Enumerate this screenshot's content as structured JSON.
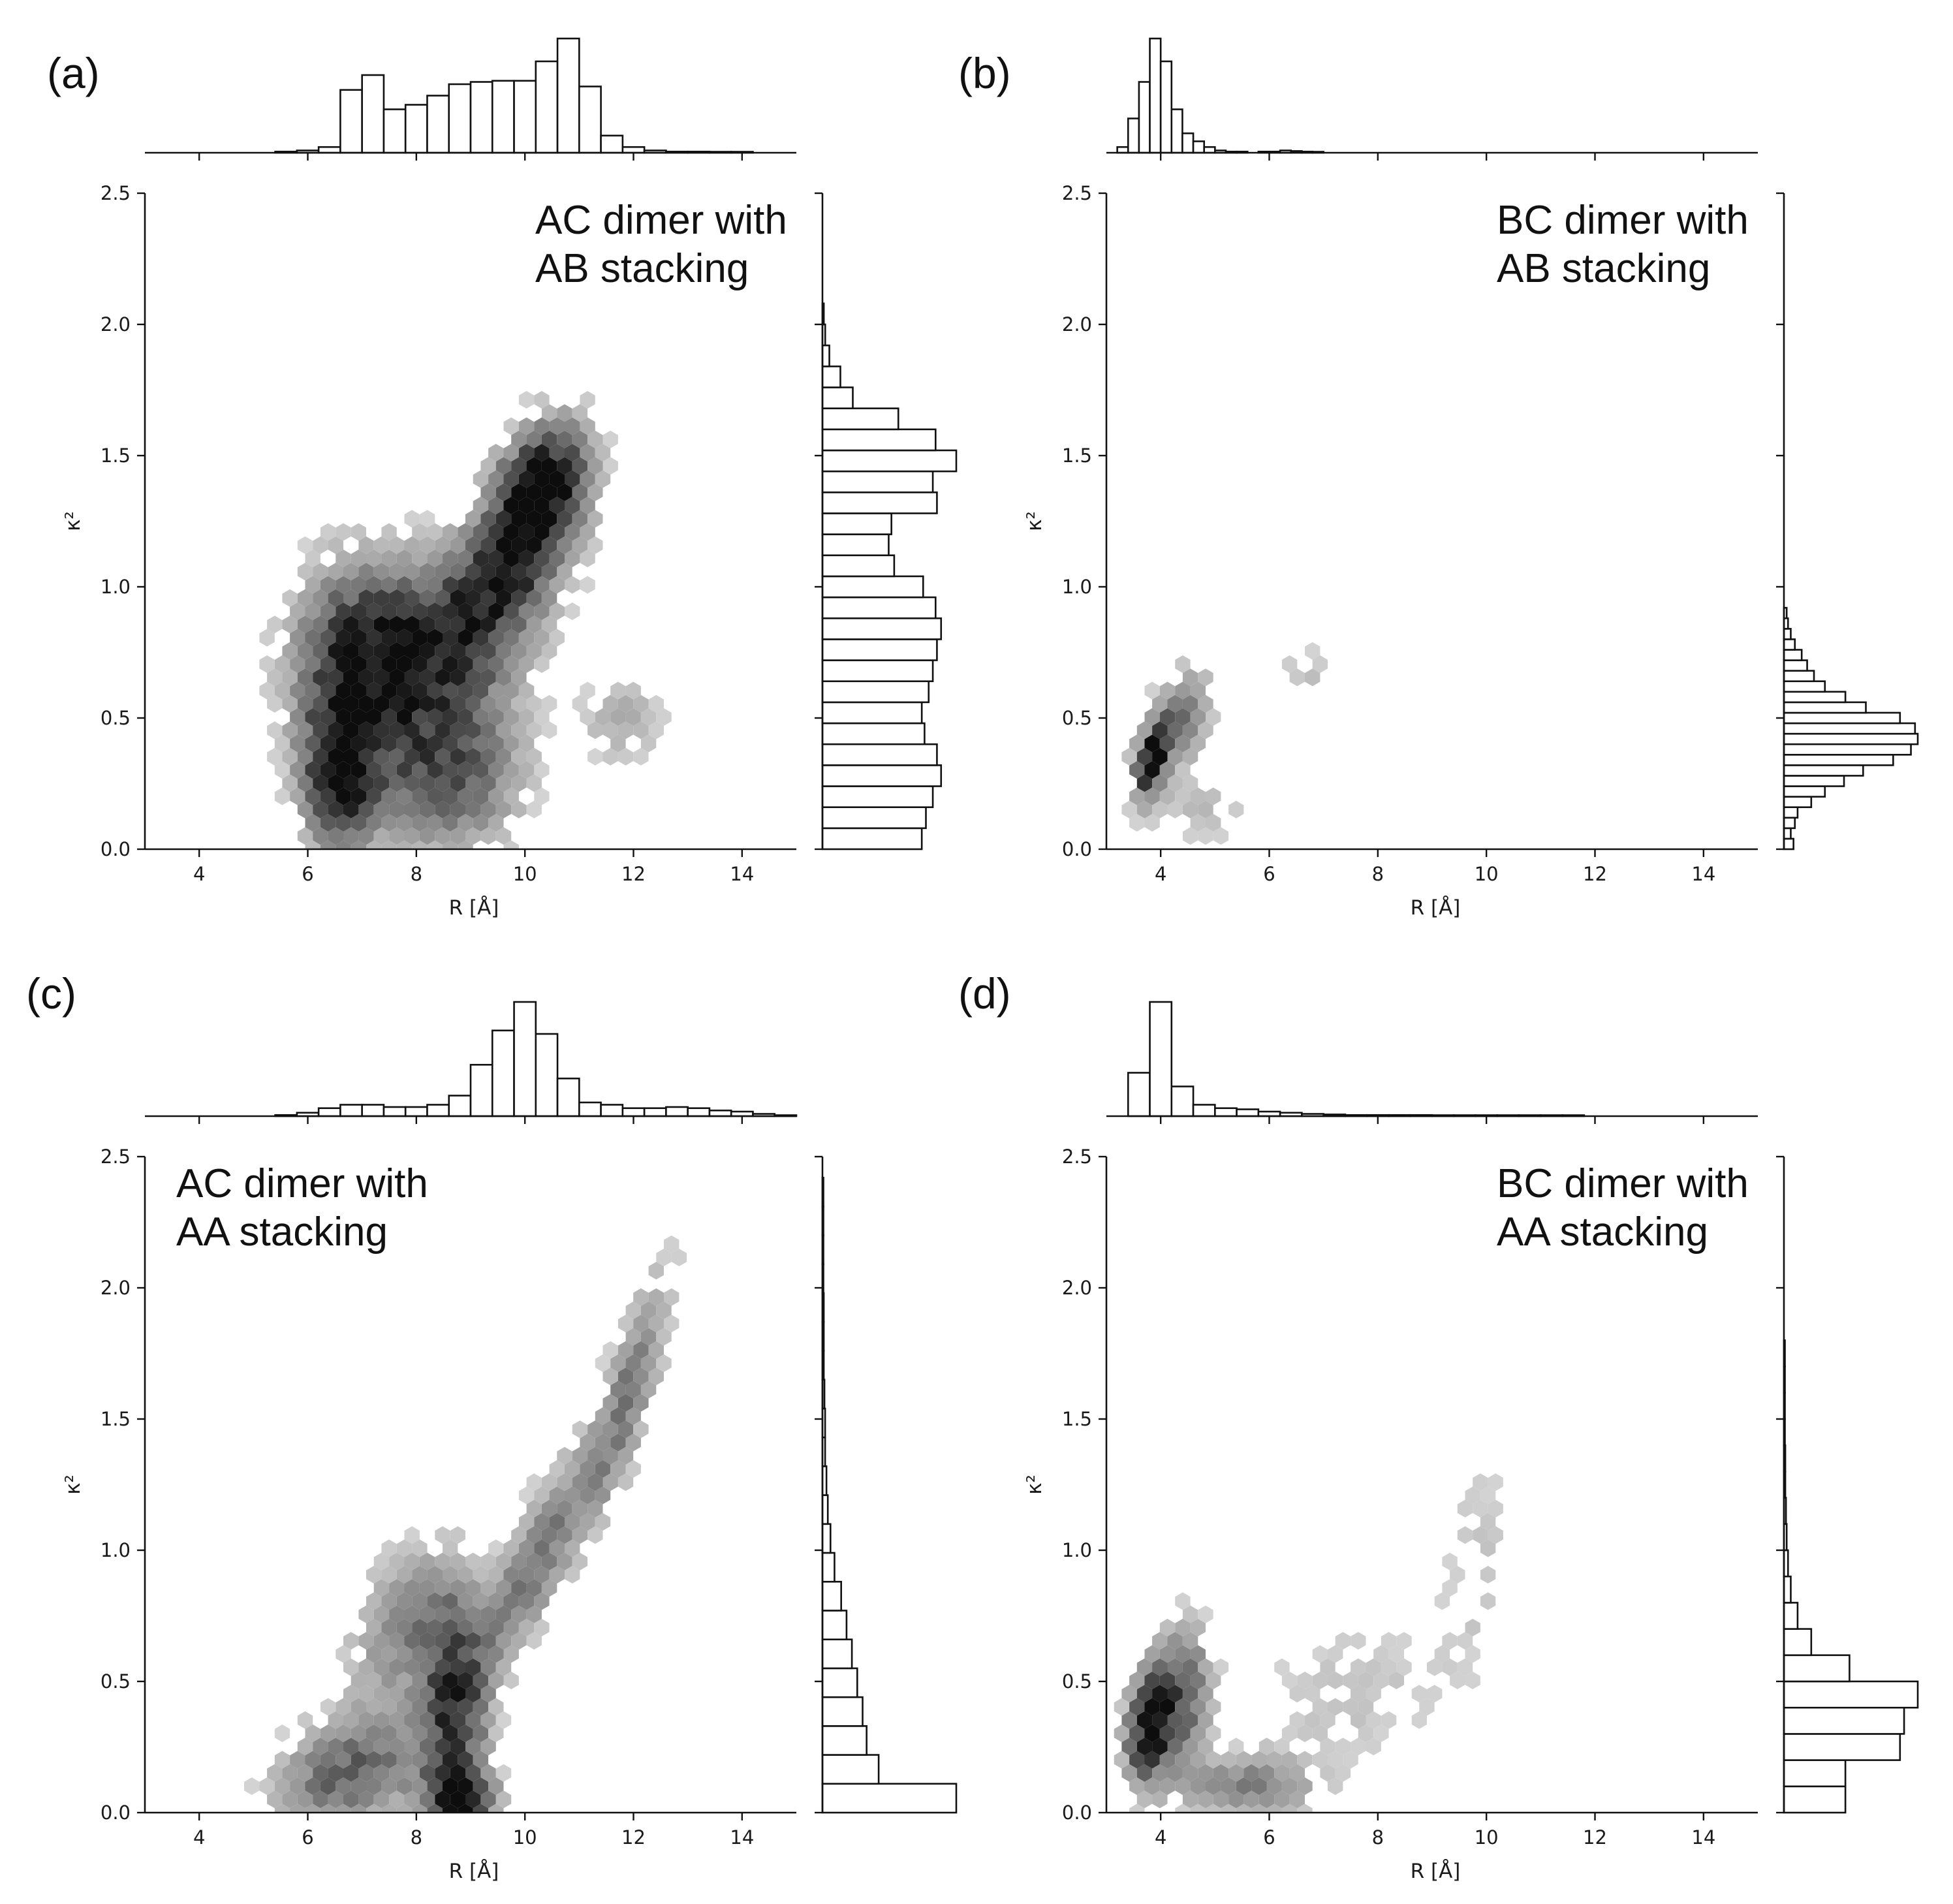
{
  "chart_data": [
    {
      "panel": "(a)",
      "type": "hexbin",
      "annotation": [
        "AC dimer with",
        "AB stacking"
      ],
      "annotation_position": "top-right",
      "xlabel": "R [Å]",
      "ylabel": "κ²",
      "xlim": [
        3,
        15
      ],
      "ylim": [
        0,
        2.5
      ],
      "xticks": [
        "4",
        "6",
        "8",
        "10",
        "12",
        "14"
      ],
      "yticks": [
        "0.0",
        "0.5",
        "1.0",
        "1.5",
        "2.0",
        "2.5"
      ],
      "clusters": [
        {
          "x": 10.3,
          "y": 1.38,
          "sx": 0.55,
          "sy": 0.16,
          "rho": 0.3,
          "w": 1.0
        },
        {
          "x": 9.6,
          "y": 1.05,
          "sx": 0.8,
          "sy": 0.22,
          "rho": 0.5,
          "w": 0.75
        },
        {
          "x": 8.0,
          "y": 0.75,
          "sx": 1.1,
          "sy": 0.22,
          "rho": 0.1,
          "w": 0.72
        },
        {
          "x": 6.6,
          "y": 0.28,
          "sx": 0.45,
          "sy": 0.2,
          "rho": 0.0,
          "w": 0.9
        },
        {
          "x": 8.5,
          "y": 0.3,
          "sx": 0.9,
          "sy": 0.2,
          "rho": 0.0,
          "w": 0.6
        },
        {
          "x": 6.8,
          "y": 0.7,
          "sx": 0.7,
          "sy": 0.25,
          "rho": 0.0,
          "w": 0.55
        },
        {
          "x": 11.8,
          "y": 0.5,
          "sx": 0.5,
          "sy": 0.12,
          "rho": 0.0,
          "w": 0.2
        }
      ],
      "marginal_x": {
        "bin_start": 3.0,
        "bin_width": 0.4,
        "counts": [
          0,
          0,
          0,
          0,
          0,
          0,
          0.01,
          0.02,
          0.05,
          0.55,
          0.68,
          0.38,
          0.42,
          0.5,
          0.6,
          0.62,
          0.63,
          0.63,
          0.8,
          1.0,
          0.58,
          0.15,
          0.05,
          0.02,
          0.01,
          0.01,
          0.005,
          0.005,
          0,
          0
        ]
      },
      "marginal_y": {
        "bin_start": 0.0,
        "bin_width": 0.08,
        "counts": [
          0.72,
          0.75,
          0.8,
          0.86,
          0.83,
          0.74,
          0.72,
          0.77,
          0.8,
          0.83,
          0.86,
          0.82,
          0.73,
          0.52,
          0.48,
          0.5,
          0.83,
          0.8,
          0.97,
          0.82,
          0.55,
          0.22,
          0.13,
          0.05,
          0.02,
          0.01
        ]
      }
    },
    {
      "panel": "(b)",
      "type": "hexbin",
      "annotation": [
        "BC dimer with",
        "AB stacking"
      ],
      "annotation_position": "top-right",
      "xlabel": "R [Å]",
      "ylabel": "κ²",
      "xlim": [
        3,
        15
      ],
      "ylim": [
        0,
        2.5
      ],
      "xticks": [
        "4",
        "6",
        "8",
        "10",
        "12",
        "14"
      ],
      "yticks": [
        "0.0",
        "0.5",
        "1.0",
        "1.5",
        "2.0",
        "2.5"
      ],
      "clusters": [
        {
          "x": 3.85,
          "y": 0.34,
          "sx": 0.22,
          "sy": 0.1,
          "rho": 0.4,
          "w": 1.0
        },
        {
          "x": 4.4,
          "y": 0.5,
          "sx": 0.35,
          "sy": 0.12,
          "rho": 0.3,
          "w": 0.45
        },
        {
          "x": 4.8,
          "y": 0.15,
          "sx": 0.6,
          "sy": 0.08,
          "rho": 0.0,
          "w": 0.15
        },
        {
          "x": 6.7,
          "y": 0.68,
          "sx": 0.3,
          "sy": 0.06,
          "rho": 0.0,
          "w": 0.15
        }
      ],
      "marginal_x": {
        "bin_start": 3.0,
        "bin_width": 0.2,
        "counts": [
          0,
          0.05,
          0.3,
          0.62,
          1.0,
          0.8,
          0.38,
          0.17,
          0.1,
          0.05,
          0.02,
          0.01,
          0.01,
          0,
          0.01,
          0.01,
          0.02,
          0.015,
          0.01,
          0.005,
          0,
          0,
          0,
          0
        ]
      },
      "marginal_y": {
        "bin_start": 0.0,
        "bin_width": 0.04,
        "counts": [
          0.07,
          0.05,
          0.08,
          0.1,
          0.2,
          0.3,
          0.44,
          0.58,
          0.8,
          0.93,
          0.98,
          0.96,
          0.85,
          0.6,
          0.45,
          0.3,
          0.22,
          0.17,
          0.13,
          0.08,
          0.05,
          0.03,
          0.02
        ]
      }
    },
    {
      "panel": "(c)",
      "type": "hexbin",
      "annotation": [
        "AC dimer with",
        "AA stacking"
      ],
      "annotation_position": "top-left",
      "xlabel": "R [Å]",
      "ylabel": "κ²",
      "xlim": [
        3,
        15
      ],
      "ylim": [
        0,
        2.5
      ],
      "xticks": [
        "4",
        "6",
        "8",
        "10",
        "12",
        "14"
      ],
      "yticks": [
        "0.0",
        "0.5",
        "1.0",
        "1.5",
        "2.0",
        "2.5"
      ],
      "clusters": [
        {
          "x": 8.8,
          "y": 0.05,
          "sx": 0.4,
          "sy": 0.07,
          "rho": 0.0,
          "w": 1.0
        },
        {
          "x": 8.7,
          "y": 0.4,
          "sx": 0.4,
          "sy": 0.28,
          "rho": 0.0,
          "w": 0.75
        },
        {
          "x": 6.8,
          "y": 0.15,
          "sx": 0.9,
          "sy": 0.15,
          "rho": 0.3,
          "w": 0.55
        },
        {
          "x": 10.2,
          "y": 0.95,
          "sx": 0.8,
          "sy": 0.3,
          "rho": 0.85,
          "w": 0.45
        },
        {
          "x": 11.9,
          "y": 1.6,
          "sx": 0.5,
          "sy": 0.3,
          "rho": 0.8,
          "w": 0.4
        },
        {
          "x": 7.8,
          "y": 0.7,
          "sx": 0.7,
          "sy": 0.2,
          "rho": 0.3,
          "w": 0.35
        }
      ],
      "marginal_x": {
        "bin_start": 3.0,
        "bin_width": 0.4,
        "counts": [
          0,
          0,
          0,
          0,
          0,
          0,
          0.01,
          0.03,
          0.07,
          0.1,
          0.1,
          0.08,
          0.08,
          0.1,
          0.18,
          0.45,
          0.75,
          1.0,
          0.72,
          0.33,
          0.12,
          0.1,
          0.07,
          0.07,
          0.08,
          0.07,
          0.05,
          0.04,
          0.02,
          0.005
        ]
      },
      "marginal_y": {
        "bin_start": 0.0,
        "bin_width": 0.11,
        "counts": [
          1.0,
          0.42,
          0.33,
          0.3,
          0.26,
          0.22,
          0.18,
          0.14,
          0.09,
          0.06,
          0.04,
          0.03,
          0.02,
          0.02,
          0.015,
          0.01,
          0.01,
          0.01,
          0.005,
          0.005,
          0.005,
          0.005
        ]
      }
    },
    {
      "panel": "(d)",
      "type": "hexbin",
      "annotation": [
        "BC dimer with",
        "AA stacking"
      ],
      "annotation_position": "top-right",
      "xlabel": "R [Å]",
      "ylabel": "κ²",
      "xlim": [
        3,
        15
      ],
      "ylim": [
        0,
        2.5
      ],
      "xticks": [
        "4",
        "6",
        "8",
        "10",
        "12",
        "14"
      ],
      "yticks": [
        "0.0",
        "0.5",
        "1.0",
        "1.5",
        "2.0",
        "2.5"
      ],
      "clusters": [
        {
          "x": 3.8,
          "y": 0.33,
          "sx": 0.28,
          "sy": 0.14,
          "rho": 0.2,
          "w": 1.0
        },
        {
          "x": 4.4,
          "y": 0.45,
          "sx": 0.35,
          "sy": 0.18,
          "rho": 0.1,
          "w": 0.55
        },
        {
          "x": 5.6,
          "y": 0.1,
          "sx": 0.8,
          "sy": 0.08,
          "rho": 0.0,
          "w": 0.4
        },
        {
          "x": 7.5,
          "y": 0.45,
          "sx": 1.2,
          "sy": 0.2,
          "rho": 0.2,
          "w": 0.12
        },
        {
          "x": 9.8,
          "y": 0.95,
          "sx": 0.4,
          "sy": 0.3,
          "rho": 0.3,
          "w": 0.12
        }
      ],
      "marginal_x": {
        "bin_start": 3.0,
        "bin_width": 0.4,
        "counts": [
          0,
          0.38,
          1.0,
          0.26,
          0.1,
          0.07,
          0.06,
          0.04,
          0.03,
          0.02,
          0.015,
          0.01,
          0.01,
          0.01,
          0.01,
          0.005,
          0.005,
          0.005,
          0.005,
          0.005,
          0.005,
          0.005,
          0,
          0,
          0,
          0,
          0,
          0,
          0,
          0
        ]
      },
      "marginal_y": {
        "bin_start": 0.0,
        "bin_width": 0.1,
        "counts": [
          0.45,
          0.45,
          0.85,
          0.88,
          0.98,
          0.48,
          0.2,
          0.1,
          0.05,
          0.03,
          0.02,
          0.015,
          0.01,
          0.01,
          0.005,
          0.005,
          0.005,
          0.005
        ]
      }
    }
  ]
}
